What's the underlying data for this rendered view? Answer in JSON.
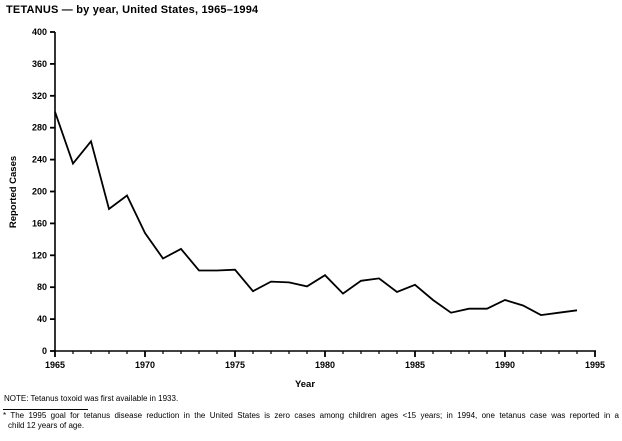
{
  "title": "TETANUS — by year, United States, 1965–1994",
  "chart_data": {
    "type": "line",
    "title": "TETANUS — by year, United States, 1965–1994",
    "xlabel": "Year",
    "ylabel": "Reported Cases",
    "xlim": [
      1965,
      1995
    ],
    "ylim": [
      0,
      400
    ],
    "xticks": [
      1965,
      1970,
      1975,
      1980,
      1985,
      1990,
      1995
    ],
    "minor_xtick_interval": 1,
    "yticks": [
      0,
      40,
      80,
      120,
      160,
      200,
      240,
      280,
      320,
      360,
      400
    ],
    "grid": "off",
    "line_color": "#000000",
    "background_color": "#ffffff",
    "x": [
      1965,
      1966,
      1967,
      1968,
      1969,
      1970,
      1971,
      1972,
      1973,
      1974,
      1975,
      1976,
      1977,
      1978,
      1979,
      1980,
      1981,
      1982,
      1983,
      1984,
      1985,
      1986,
      1987,
      1988,
      1989,
      1990,
      1991,
      1992,
      1993,
      1994
    ],
    "values": [
      300,
      235,
      263,
      178,
      195,
      148,
      116,
      128,
      101,
      101,
      102,
      75,
      87,
      86,
      81,
      95,
      72,
      88,
      91,
      74,
      83,
      64,
      48,
      53,
      53,
      64,
      57,
      45,
      48,
      51
    ]
  },
  "notes": {
    "note": "NOTE: Tetanus toxoid was first available in 1933.",
    "footnote_line1": "* The 1995 goal for tetanus disease reduction in the United States is zero cases among children ages <15 years; in 1994, one tetanus case was reported in a",
    "footnote_line2": "child 12 years of age."
  }
}
